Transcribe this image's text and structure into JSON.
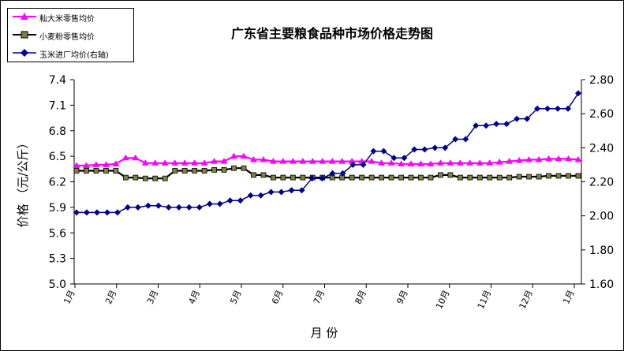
{
  "chart_data": {
    "type": "line",
    "title": "广东省主要粮食品种市场价格走势图",
    "xlabel": "月  份",
    "ylabel": "价格 （元/公斤）",
    "y_ticks": [
      "7.4",
      "7.1",
      "6.8",
      "6.5",
      "6.2",
      "5.9",
      "5.6",
      "5.3",
      "5.0"
    ],
    "y2_ticks": [
      "2.80",
      "2.60",
      "2.40",
      "2.20",
      "2.00",
      "1.80",
      "1.60"
    ],
    "ylim": [
      5.0,
      7.4
    ],
    "y2lim": [
      1.6,
      2.8
    ],
    "x_ticks": [
      "1月",
      "2月",
      "3月",
      "4月",
      "5月",
      "6月",
      "7月",
      "8月",
      "9月",
      "10月",
      "11月",
      "12月",
      "1月"
    ],
    "series": [
      {
        "name": "籼大米零售均价",
        "axis": "left",
        "color": "#ff00ff",
        "marker": "triangle",
        "values": [
          6.39,
          6.39,
          6.4,
          6.4,
          6.41,
          6.48,
          6.48,
          6.42,
          6.42,
          6.42,
          6.42,
          6.42,
          6.42,
          6.42,
          6.44,
          6.44,
          6.5,
          6.5,
          6.46,
          6.46,
          6.44,
          6.44,
          6.44,
          6.44,
          6.44,
          6.44,
          6.44,
          6.44,
          6.44,
          6.44,
          6.44,
          6.42,
          6.42,
          6.41,
          6.41,
          6.41,
          6.41,
          6.42,
          6.42,
          6.42,
          6.42,
          6.42,
          6.42,
          6.43,
          6.44,
          6.45,
          6.46,
          6.46,
          6.47,
          6.47,
          6.47,
          6.46
        ]
      },
      {
        "name": "小麦粉零售均价",
        "axis": "left",
        "color": "#000000",
        "fill": "#808040",
        "marker": "square",
        "values": [
          6.33,
          6.33,
          6.33,
          6.33,
          6.33,
          6.25,
          6.25,
          6.24,
          6.24,
          6.24,
          6.33,
          6.33,
          6.33,
          6.33,
          6.34,
          6.34,
          6.36,
          6.36,
          6.28,
          6.28,
          6.25,
          6.25,
          6.25,
          6.25,
          6.25,
          6.25,
          6.25,
          6.25,
          6.25,
          6.25,
          6.25,
          6.25,
          6.25,
          6.25,
          6.25,
          6.25,
          6.25,
          6.28,
          6.28,
          6.25,
          6.25,
          6.25,
          6.25,
          6.25,
          6.25,
          6.26,
          6.26,
          6.26,
          6.27,
          6.27,
          6.27,
          6.27
        ]
      },
      {
        "name": "玉米进厂均价(右轴)",
        "axis": "right",
        "color": "#00008b",
        "marker": "diamond",
        "values": [
          2.02,
          2.02,
          2.02,
          2.02,
          2.02,
          2.05,
          2.05,
          2.06,
          2.06,
          2.05,
          2.05,
          2.05,
          2.05,
          2.07,
          2.07,
          2.09,
          2.09,
          2.12,
          2.12,
          2.14,
          2.14,
          2.15,
          2.15,
          2.22,
          2.22,
          2.25,
          2.25,
          2.3,
          2.3,
          2.38,
          2.38,
          2.34,
          2.34,
          2.39,
          2.39,
          2.4,
          2.4,
          2.45,
          2.45,
          2.53,
          2.53,
          2.54,
          2.54,
          2.57,
          2.57,
          2.63,
          2.63,
          2.63,
          2.63,
          2.72
        ]
      }
    ],
    "grid": false,
    "legend": "top-left"
  }
}
